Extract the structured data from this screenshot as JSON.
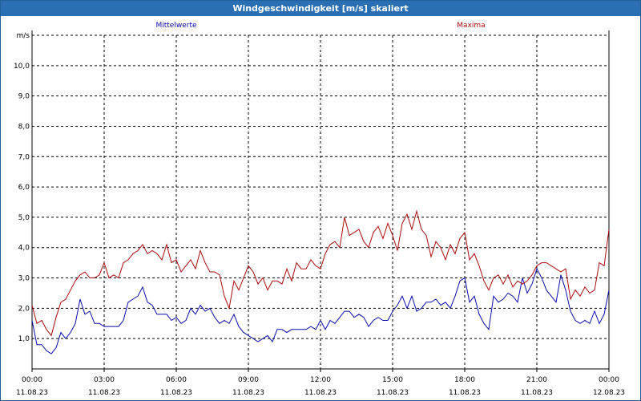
{
  "window": {
    "title": "Windgeschwindigkeit [m/s] skaliert"
  },
  "colors": {
    "mean": "#0a0aa8",
    "max": "#a80a0a",
    "grid": "#000000",
    "titlebar": "#2a6fb3"
  },
  "chart_data": {
    "type": "line",
    "title": "Windgeschwindigkeit [m/s] skaliert",
    "y_unit": "m/s",
    "ylim": [
      0.0,
      11.0
    ],
    "yticks": [
      "1,0",
      "2,0",
      "3,0",
      "4,0",
      "5,0",
      "6,0",
      "7,0",
      "8,0",
      "9,0",
      "10,0"
    ],
    "xlim": [
      0,
      24
    ],
    "xticks": [
      {
        "time": "00:00",
        "date": "11.08.23"
      },
      {
        "time": "03:00",
        "date": "11.08.23"
      },
      {
        "time": "06:00",
        "date": "11.08.23"
      },
      {
        "time": "09:00",
        "date": "11.08.23"
      },
      {
        "time": "12:00",
        "date": "11.08.23"
      },
      {
        "time": "15:00",
        "date": "11.08.23"
      },
      {
        "time": "18:00",
        "date": "11.08.23"
      },
      {
        "time": "21:00",
        "date": "11.08.23"
      },
      {
        "time": "00:00",
        "date": "12.08.23"
      }
    ],
    "grid": true,
    "series": [
      {
        "name": "Mittelwerte",
        "color": "#0a0aa8",
        "points": [
          [
            0.0,
            1.6
          ],
          [
            0.2,
            0.8
          ],
          [
            0.4,
            0.8
          ],
          [
            0.6,
            0.6
          ],
          [
            0.8,
            0.5
          ],
          [
            1.0,
            0.7
          ],
          [
            1.2,
            1.2
          ],
          [
            1.4,
            1.0
          ],
          [
            1.6,
            1.2
          ],
          [
            1.8,
            1.5
          ],
          [
            2.0,
            2.3
          ],
          [
            2.2,
            1.8
          ],
          [
            2.4,
            1.9
          ],
          [
            2.6,
            1.5
          ],
          [
            2.8,
            1.5
          ],
          [
            3.0,
            1.4
          ],
          [
            3.2,
            1.4
          ],
          [
            3.4,
            1.4
          ],
          [
            3.6,
            1.4
          ],
          [
            3.8,
            1.6
          ],
          [
            4.0,
            2.2
          ],
          [
            4.2,
            2.3
          ],
          [
            4.4,
            2.4
          ],
          [
            4.6,
            2.7
          ],
          [
            4.8,
            2.2
          ],
          [
            5.0,
            2.1
          ],
          [
            5.2,
            1.8
          ],
          [
            5.4,
            1.8
          ],
          [
            5.6,
            1.8
          ],
          [
            5.8,
            1.6
          ],
          [
            6.0,
            1.7
          ],
          [
            6.2,
            1.5
          ],
          [
            6.4,
            1.6
          ],
          [
            6.6,
            2.0
          ],
          [
            6.8,
            1.8
          ],
          [
            7.0,
            2.1
          ],
          [
            7.2,
            1.9
          ],
          [
            7.4,
            2.0
          ],
          [
            7.6,
            1.7
          ],
          [
            7.8,
            1.5
          ],
          [
            8.0,
            1.6
          ],
          [
            8.2,
            1.5
          ],
          [
            8.4,
            1.8
          ],
          [
            8.6,
            1.4
          ],
          [
            8.8,
            1.2
          ],
          [
            9.0,
            1.1
          ],
          [
            9.2,
            1.0
          ],
          [
            9.4,
            0.9
          ],
          [
            9.6,
            1.0
          ],
          [
            9.8,
            1.1
          ],
          [
            10.0,
            0.9
          ],
          [
            10.2,
            1.3
          ],
          [
            10.4,
            1.3
          ],
          [
            10.6,
            1.2
          ],
          [
            10.8,
            1.3
          ],
          [
            11.0,
            1.3
          ],
          [
            11.2,
            1.3
          ],
          [
            11.4,
            1.3
          ],
          [
            11.6,
            1.4
          ],
          [
            11.8,
            1.3
          ],
          [
            12.0,
            1.6
          ],
          [
            12.2,
            1.3
          ],
          [
            12.4,
            1.6
          ],
          [
            12.6,
            1.5
          ],
          [
            12.8,
            1.7
          ],
          [
            13.0,
            1.9
          ],
          [
            13.2,
            1.9
          ],
          [
            13.4,
            1.7
          ],
          [
            13.6,
            1.8
          ],
          [
            13.8,
            1.7
          ],
          [
            14.0,
            1.4
          ],
          [
            14.2,
            1.6
          ],
          [
            14.4,
            1.7
          ],
          [
            14.6,
            1.6
          ],
          [
            14.8,
            1.6
          ],
          [
            15.0,
            1.9
          ],
          [
            15.2,
            2.1
          ],
          [
            15.4,
            2.4
          ],
          [
            15.6,
            2.0
          ],
          [
            15.8,
            2.4
          ],
          [
            16.0,
            1.9
          ],
          [
            16.2,
            2.0
          ],
          [
            16.4,
            2.2
          ],
          [
            16.6,
            2.2
          ],
          [
            16.8,
            2.3
          ],
          [
            17.0,
            2.1
          ],
          [
            17.2,
            2.2
          ],
          [
            17.4,
            2.0
          ],
          [
            17.6,
            2.4
          ],
          [
            17.8,
            2.9
          ],
          [
            18.0,
            3.0
          ],
          [
            18.2,
            2.2
          ],
          [
            18.4,
            2.4
          ],
          [
            18.6,
            1.8
          ],
          [
            18.8,
            1.5
          ],
          [
            19.0,
            1.3
          ],
          [
            19.2,
            2.4
          ],
          [
            19.4,
            2.2
          ],
          [
            19.6,
            2.3
          ],
          [
            19.8,
            2.5
          ],
          [
            20.0,
            2.4
          ],
          [
            20.2,
            2.2
          ],
          [
            20.4,
            3.0
          ],
          [
            20.6,
            2.5
          ],
          [
            20.8,
            2.8
          ],
          [
            21.0,
            3.3
          ],
          [
            21.2,
            3.0
          ],
          [
            21.4,
            2.6
          ],
          [
            21.6,
            2.4
          ],
          [
            21.8,
            2.2
          ],
          [
            22.0,
            3.1
          ],
          [
            22.2,
            2.6
          ],
          [
            22.4,
            1.9
          ],
          [
            22.6,
            1.6
          ],
          [
            22.8,
            1.5
          ],
          [
            23.0,
            1.6
          ],
          [
            23.2,
            1.5
          ],
          [
            23.4,
            1.9
          ],
          [
            23.6,
            1.5
          ],
          [
            23.8,
            1.8
          ],
          [
            24.0,
            2.6
          ]
        ]
      },
      {
        "name": "Maxima",
        "color": "#a80a0a",
        "points": [
          [
            0.0,
            2.1
          ],
          [
            0.2,
            1.5
          ],
          [
            0.4,
            1.6
          ],
          [
            0.6,
            1.3
          ],
          [
            0.8,
            1.1
          ],
          [
            1.0,
            1.7
          ],
          [
            1.2,
            2.2
          ],
          [
            1.4,
            2.3
          ],
          [
            1.6,
            2.6
          ],
          [
            1.8,
            2.9
          ],
          [
            2.0,
            3.1
          ],
          [
            2.2,
            3.2
          ],
          [
            2.4,
            3.0
          ],
          [
            2.6,
            3.0
          ],
          [
            2.8,
            3.1
          ],
          [
            3.0,
            3.5
          ],
          [
            3.2,
            3.0
          ],
          [
            3.4,
            3.1
          ],
          [
            3.6,
            3.0
          ],
          [
            3.8,
            3.5
          ],
          [
            4.0,
            3.6
          ],
          [
            4.2,
            3.8
          ],
          [
            4.4,
            3.9
          ],
          [
            4.6,
            4.1
          ],
          [
            4.8,
            3.8
          ],
          [
            5.0,
            3.9
          ],
          [
            5.2,
            3.8
          ],
          [
            5.4,
            3.6
          ],
          [
            5.6,
            4.1
          ],
          [
            5.8,
            3.5
          ],
          [
            6.0,
            3.6
          ],
          [
            6.2,
            3.2
          ],
          [
            6.4,
            3.4
          ],
          [
            6.6,
            3.6
          ],
          [
            6.8,
            3.3
          ],
          [
            7.0,
            3.9
          ],
          [
            7.2,
            3.5
          ],
          [
            7.4,
            3.2
          ],
          [
            7.6,
            3.2
          ],
          [
            7.8,
            3.1
          ],
          [
            8.0,
            2.4
          ],
          [
            8.2,
            2.0
          ],
          [
            8.4,
            2.9
          ],
          [
            8.6,
            2.6
          ],
          [
            8.8,
            3.0
          ],
          [
            9.0,
            3.4
          ],
          [
            9.2,
            3.2
          ],
          [
            9.4,
            2.8
          ],
          [
            9.6,
            3.0
          ],
          [
            9.8,
            2.6
          ],
          [
            10.0,
            2.9
          ],
          [
            10.2,
            2.9
          ],
          [
            10.4,
            2.8
          ],
          [
            10.6,
            3.3
          ],
          [
            10.8,
            2.9
          ],
          [
            11.0,
            3.5
          ],
          [
            11.2,
            3.3
          ],
          [
            11.4,
            3.3
          ],
          [
            11.6,
            3.6
          ],
          [
            11.8,
            3.4
          ],
          [
            12.0,
            3.3
          ],
          [
            12.2,
            3.8
          ],
          [
            12.4,
            4.1
          ],
          [
            12.6,
            4.2
          ],
          [
            12.8,
            4.0
          ],
          [
            13.0,
            5.0
          ],
          [
            13.2,
            4.4
          ],
          [
            13.4,
            4.5
          ],
          [
            13.6,
            4.6
          ],
          [
            13.8,
            4.2
          ],
          [
            14.0,
            4.0
          ],
          [
            14.2,
            4.5
          ],
          [
            14.4,
            4.7
          ],
          [
            14.6,
            4.3
          ],
          [
            14.8,
            4.8
          ],
          [
            15.0,
            4.4
          ],
          [
            15.2,
            3.9
          ],
          [
            15.4,
            4.8
          ],
          [
            15.6,
            5.1
          ],
          [
            15.8,
            4.6
          ],
          [
            16.0,
            5.2
          ],
          [
            16.2,
            4.6
          ],
          [
            16.4,
            4.4
          ],
          [
            16.6,
            3.7
          ],
          [
            16.8,
            4.2
          ],
          [
            17.0,
            4.0
          ],
          [
            17.2,
            3.6
          ],
          [
            17.4,
            4.1
          ],
          [
            17.6,
            3.8
          ],
          [
            17.8,
            4.3
          ],
          [
            18.0,
            4.5
          ],
          [
            18.2,
            3.6
          ],
          [
            18.4,
            3.8
          ],
          [
            18.6,
            3.4
          ],
          [
            18.8,
            2.9
          ],
          [
            19.0,
            2.6
          ],
          [
            19.2,
            3.0
          ],
          [
            19.4,
            3.1
          ],
          [
            19.6,
            2.8
          ],
          [
            19.8,
            3.1
          ],
          [
            20.0,
            2.7
          ],
          [
            20.2,
            2.9
          ],
          [
            20.4,
            2.8
          ],
          [
            20.6,
            2.9
          ],
          [
            20.8,
            3.1
          ],
          [
            21.0,
            3.4
          ],
          [
            21.2,
            3.5
          ],
          [
            21.4,
            3.5
          ],
          [
            21.6,
            3.4
          ],
          [
            21.8,
            3.3
          ],
          [
            22.0,
            3.2
          ],
          [
            22.2,
            3.3
          ],
          [
            22.4,
            2.3
          ],
          [
            22.6,
            2.6
          ],
          [
            22.8,
            2.4
          ],
          [
            23.0,
            2.7
          ],
          [
            23.2,
            2.5
          ],
          [
            23.4,
            2.6
          ],
          [
            23.6,
            3.5
          ],
          [
            23.8,
            3.4
          ],
          [
            24.0,
            4.6
          ]
        ]
      }
    ]
  }
}
